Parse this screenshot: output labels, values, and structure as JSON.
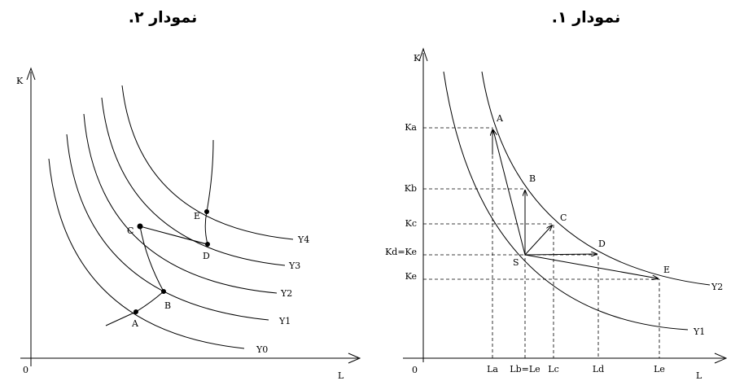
{
  "diagrams": [
    {
      "title": "نمودار ۱.",
      "axis_labels": {
        "y": "K",
        "x": "L",
        "origin": "0"
      },
      "curves": [
        "Y1",
        "Y2"
      ],
      "points": [
        "A",
        "B",
        "C",
        "D",
        "E",
        "S"
      ],
      "y_ticks": [
        "Ka",
        "Kb",
        "Kc",
        "Kd=Ke",
        "Ke"
      ],
      "x_ticks": [
        "La",
        "Lb=Le",
        "Lc",
        "Ld",
        "Le"
      ]
    },
    {
      "title": "نمودار ۲.",
      "axis_labels": {
        "y": "K",
        "x": "L",
        "origin": "0"
      },
      "curves": [
        "Y0",
        "Y1",
        "Y2",
        "Y3",
        "Y4"
      ],
      "points": [
        "A",
        "B",
        "C",
        "D",
        "E"
      ]
    }
  ]
}
